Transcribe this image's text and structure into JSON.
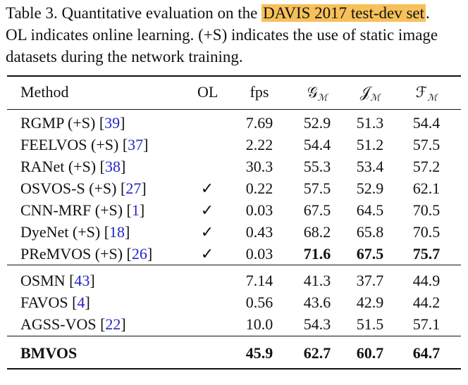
{
  "caption": {
    "prefix": "Table 3. Quantitative evaluation on the ",
    "highlight": "DAVIS 2017 test-dev set",
    "suffix": ".",
    "line2": "OL indicates online learning. (+S) indicates the use of static image",
    "line3": "datasets during the network training."
  },
  "table": {
    "headers": {
      "method": "Method",
      "ol": "OL",
      "fps": "fps",
      "g": "𝒢",
      "j": "𝒥",
      "f": "ℱ",
      "sub": "ℳ"
    },
    "group1": [
      {
        "name": "RGMP (+S) [",
        "ref": "39",
        "close": "]",
        "ol": "",
        "fps": "7.69",
        "g": "52.9",
        "j": "51.3",
        "f": "54.4"
      },
      {
        "name": "FEELVOS (+S) [",
        "ref": "37",
        "close": "]",
        "ol": "",
        "fps": "2.22",
        "g": "54.4",
        "j": "51.2",
        "f": "57.5"
      },
      {
        "name": "RANet (+S) [",
        "ref": "38",
        "close": "]",
        "ol": "",
        "fps": "30.3",
        "g": "55.3",
        "j": "53.4",
        "f": "57.2"
      },
      {
        "name": "OSVOS-S (+S) [",
        "ref": "27",
        "close": "]",
        "ol": "✓",
        "fps": "0.22",
        "g": "57.5",
        "j": "52.9",
        "f": "62.1"
      },
      {
        "name": "CNN-MRF (+S) [",
        "ref": "1",
        "close": "]",
        "ol": "✓",
        "fps": "0.03",
        "g": "67.5",
        "j": "64.5",
        "f": "70.5"
      },
      {
        "name": "DyeNet (+S) [",
        "ref": "18",
        "close": "]",
        "ol": "✓",
        "fps": "0.43",
        "g": "68.2",
        "j": "65.8",
        "f": "70.5"
      },
      {
        "name": "PReMVOS (+S) [",
        "ref": "26",
        "close": "]",
        "ol": "✓",
        "fps": "0.03",
        "g": "71.6",
        "j": "67.5",
        "f": "75.7"
      }
    ],
    "group2": [
      {
        "name": "OSMN [",
        "ref": "43",
        "close": "]",
        "ol": "",
        "fps": "7.14",
        "g": "41.3",
        "j": "37.7",
        "f": "44.9"
      },
      {
        "name": "FAVOS [",
        "ref": "4",
        "close": "]",
        "ol": "",
        "fps": "0.56",
        "g": "43.6",
        "j": "42.9",
        "f": "44.2"
      },
      {
        "name": "AGSS-VOS [",
        "ref": "22",
        "close": "]",
        "ol": "",
        "fps": "10.0",
        "g": "54.3",
        "j": "51.5",
        "f": "57.1"
      }
    ],
    "ours": {
      "name": "BMVOS",
      "fps": "45.9",
      "g": "62.7",
      "j": "60.7",
      "f": "64.7"
    }
  }
}
